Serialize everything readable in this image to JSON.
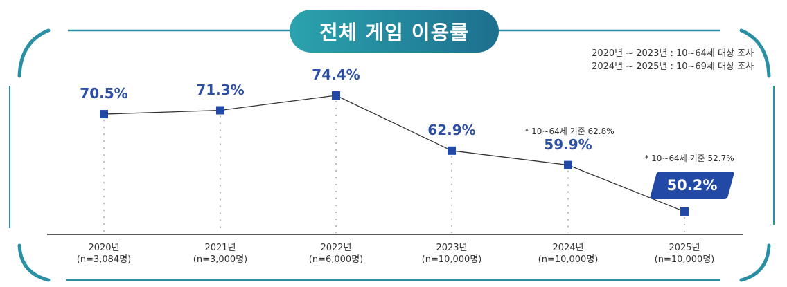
{
  "title": "전체 게임 이용률",
  "notes": [
    "2020년 ~ 2023년 : 10~64세 대상 조사",
    "2024년 ~ 2025년 : 10~69세 대상 조사"
  ],
  "colors": {
    "teal": "#2a8fa3",
    "point": "#2249a6",
    "label": "#2c4ea3"
  },
  "chart_data": {
    "type": "line",
    "title": "전체 게임 이용률",
    "categories": [
      "2020년",
      "2021년",
      "2022년",
      "2023년",
      "2024년",
      "2025년"
    ],
    "sample_sizes": [
      "(n=3,084명)",
      "(n=3,000명)",
      "(n=6,000명)",
      "(n=10,000명)",
      "(n=10,000명)",
      "(n=10,000명)"
    ],
    "values": [
      70.5,
      71.3,
      74.4,
      62.9,
      59.9,
      50.2
    ],
    "labels": [
      "70.5%",
      "71.3%",
      "74.4%",
      "62.9%",
      "59.9%",
      "50.2%"
    ],
    "annotations": {
      "4": "* 10~64세 기준 62.8%",
      "5": "* 10~64세 기준 52.7%"
    },
    "ylim": [
      45.4,
      80
    ],
    "grid": false
  }
}
